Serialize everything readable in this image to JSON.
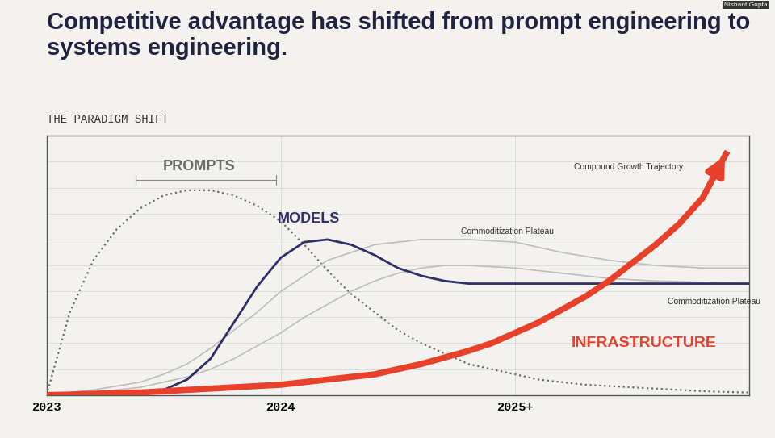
{
  "chart_data": {
    "type": "line",
    "title": "Competitive advantage has shifted from prompt engineering to systems engineering.",
    "subtitle": "THE PARADIGM SHIFT",
    "x": [
      2023.0,
      2023.1,
      2023.2,
      2023.3,
      2023.4,
      2023.5,
      2023.6,
      2023.7,
      2023.8,
      2023.9,
      2024.0,
      2024.1,
      2024.2,
      2024.3,
      2024.4,
      2024.5,
      2024.6,
      2024.7,
      2024.8,
      2024.9,
      2025.0,
      2025.1,
      2025.2,
      2025.3,
      2025.4,
      2025.5,
      2025.6,
      2025.7,
      2025.8,
      2025.9,
      2026.0
    ],
    "series": [
      {
        "name": "PROMPTS",
        "color": "#6b6b6b",
        "line_style": "dotted",
        "values": [
          0,
          32,
          52,
          64,
          72,
          77,
          79,
          79,
          77,
          73,
          67,
          58,
          48,
          39,
          32,
          25,
          20,
          16,
          12,
          10,
          8,
          6,
          5,
          4,
          3.5,
          3,
          2.5,
          2,
          1.5,
          1.2,
          1
        ]
      },
      {
        "color": "#bdbdbd",
        "line_style": "solid",
        "values": [
          0,
          1,
          2,
          3.5,
          5,
          8,
          12,
          18,
          25,
          32,
          40,
          46,
          52,
          55,
          58,
          59,
          60,
          60,
          60,
          59.5,
          59,
          57,
          55,
          53.5,
          52,
          51,
          50,
          49.5,
          49,
          49,
          49
        ]
      },
      {
        "color": "#bdbdbd",
        "line_style": "solid",
        "values": [
          0,
          0.5,
          1,
          2,
          3,
          5,
          7,
          10,
          14,
          19,
          24,
          30,
          35,
          40,
          44,
          47,
          49,
          50,
          50,
          49.5,
          49,
          48,
          47,
          46,
          45,
          44.5,
          44,
          43.8,
          43.5,
          43.2,
          43
        ]
      },
      {
        "name": "MODELS",
        "color": "#2e2f6b",
        "line_style": "solid",
        "values": [
          0,
          0,
          0,
          0.3,
          0.8,
          2,
          6,
          14,
          28,
          42,
          53,
          59,
          60,
          58,
          54,
          49,
          46,
          44,
          43,
          43,
          43,
          43,
          43,
          43,
          43,
          43,
          43,
          43,
          43,
          43,
          43
        ]
      },
      {
        "name": "INFRASTRUCTURE",
        "color": "#e8402a",
        "line_style": "solid",
        "values": [
          0,
          0.2,
          0.5,
          0.8,
          1,
          1.5,
          2,
          2.5,
          3,
          3.5,
          4,
          5,
          6,
          7,
          8,
          10,
          12,
          14.5,
          17,
          20,
          24,
          28,
          33,
          38,
          44,
          51,
          58,
          66,
          76,
          93,
          null
        ]
      }
    ],
    "annotations": [
      "Compound Growth Trajectory",
      "Commoditization Plateau",
      "Commoditization Plateau",
      "Nishant Gupta"
    ],
    "xlim": [
      2023.0,
      2026.0
    ],
    "xticks": [
      2023,
      2024,
      {
        "value": 2025,
        "label": "2025+"
      }
    ],
    "ylim": [
      0,
      100
    ],
    "yticks": [
      0,
      10,
      20,
      30,
      40,
      50,
      60,
      70,
      80,
      90,
      100
    ],
    "tick_labels": "x",
    "grid": true
  }
}
